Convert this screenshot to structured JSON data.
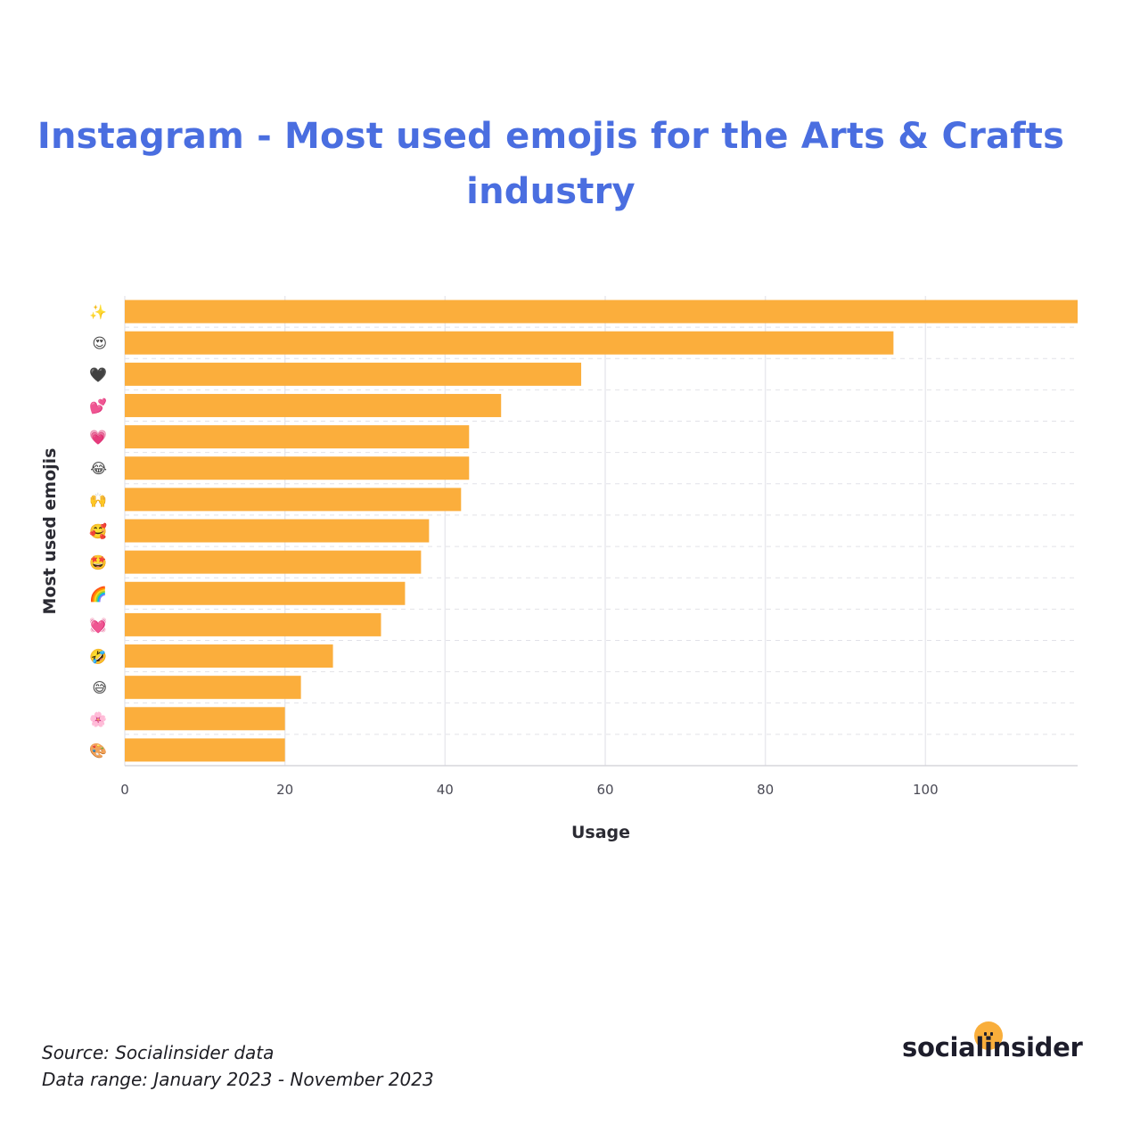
{
  "header": {
    "title_line1": "Instagram - Most used emojis for the Arts & Crafts",
    "title_line2": "industry"
  },
  "chart_data": {
    "type": "bar",
    "orientation": "horizontal",
    "categories": [
      "✨",
      "😍",
      "🖤",
      "💕",
      "💗",
      "😂",
      "🙌",
      "🥰",
      "🤩",
      "🌈",
      "💓",
      "🤣",
      "😅",
      "🌸",
      "🎨"
    ],
    "values": [
      119,
      96,
      57,
      47,
      43,
      43,
      42,
      38,
      37,
      35,
      32,
      26,
      22,
      20,
      20
    ],
    "xlabel": "Usage",
    "ylabel": "Most used emojis",
    "xlim": [
      0,
      119
    ],
    "xticks": [
      0,
      20,
      40,
      60,
      80,
      100
    ],
    "grid": true,
    "bar_color": "#fbae3c"
  },
  "footer": {
    "source": "Source: Socialinsider data",
    "range": "Data range: January 2023 - November 2023"
  },
  "brand": {
    "logo_text": "socialinsider",
    "accent": "#f9ae3b",
    "title_color": "#4a6ee0"
  }
}
